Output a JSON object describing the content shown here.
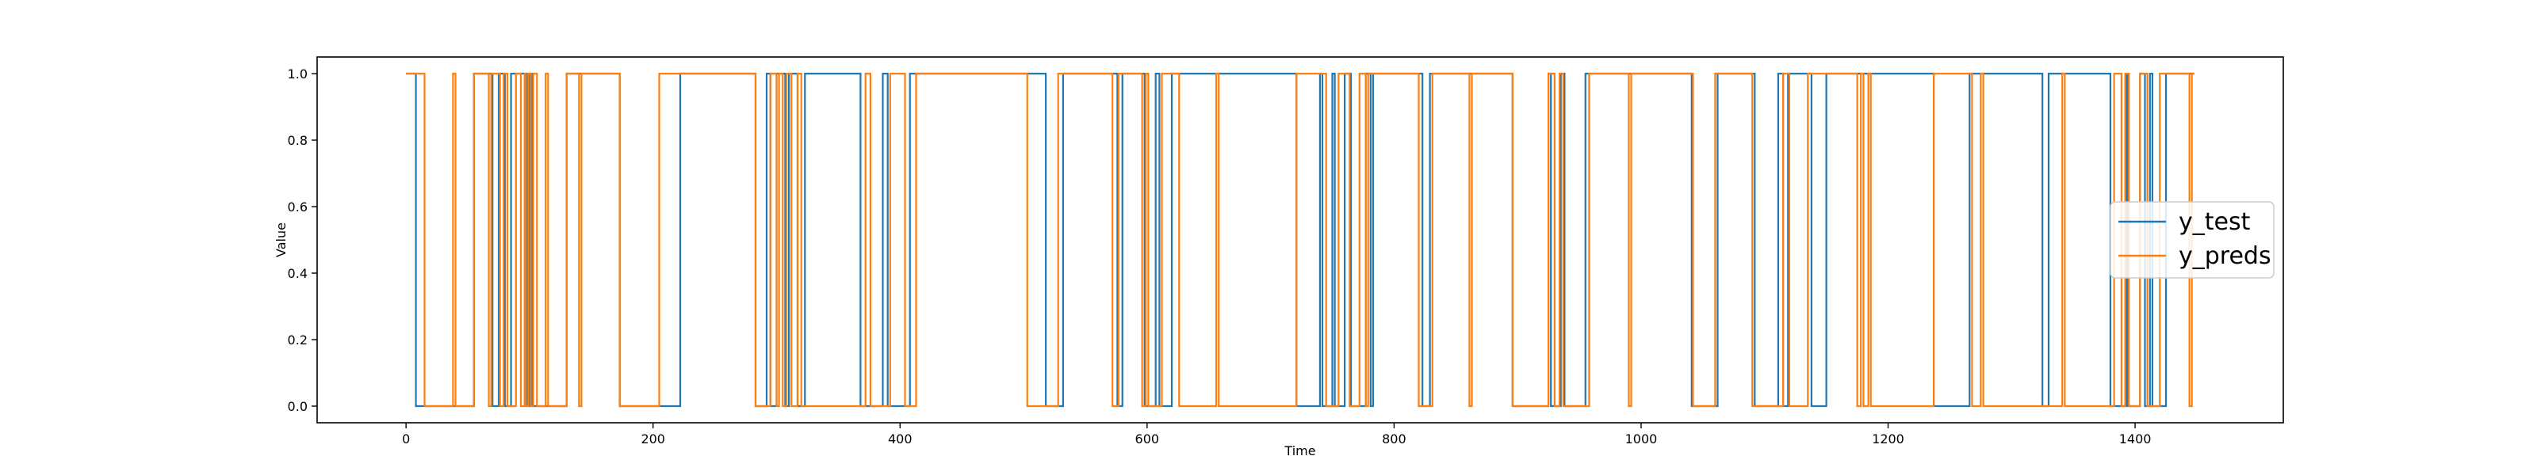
{
  "chart_data": {
    "type": "line",
    "title": "",
    "xlabel": "Time",
    "ylabel": "Value",
    "xlim": [
      -72,
      1520
    ],
    "ylim": [
      -0.05,
      1.05
    ],
    "x_ticks": [
      0,
      200,
      400,
      600,
      800,
      1000,
      1200,
      1400
    ],
    "y_ticks": [
      0.0,
      0.2,
      0.4,
      0.6,
      0.8,
      1.0
    ],
    "x_tick_labels": [
      "0",
      "200",
      "400",
      "600",
      "800",
      "1000",
      "1200",
      "1400"
    ],
    "y_tick_labels": [
      "0.0",
      "0.2",
      "0.4",
      "0.6",
      "0.8",
      "1.0"
    ],
    "grid": false,
    "legend_position": "center-right",
    "x_max": 1448,
    "series": [
      {
        "name": "y_test",
        "color": "#1f77b4",
        "start_value": 1,
        "transitions": [
          8,
          55,
          70,
          75,
          80,
          85,
          98,
          100,
          102,
          130,
          173,
          222,
          283,
          292,
          295,
          300,
          307,
          310,
          317,
          323,
          368,
          386,
          390,
          408,
          518,
          532,
          576,
          580,
          598,
          607,
          610,
          620,
          721,
          740,
          742,
          750,
          752,
          760,
          765,
          777,
          781,
          783,
          823,
          829,
          896,
          925,
          927,
          935,
          938,
          955,
          1041,
          1062,
          1092,
          1111,
          1115,
          1119,
          1138,
          1150,
          1237,
          1266,
          1325,
          1330,
          1380,
          1393,
          1394,
          1404,
          1408,
          1412,
          1414,
          1425
        ]
      },
      {
        "name": "y_preds",
        "color": "#ff7f0e",
        "start_value": 1,
        "transitions": [
          15,
          38,
          40,
          55,
          67,
          69,
          76,
          79,
          82,
          89,
          93,
          96,
          97,
          99,
          101,
          103,
          106,
          113,
          115,
          130,
          140,
          142,
          173,
          205,
          283,
          295,
          300,
          302,
          305,
          308,
          312,
          317,
          320,
          372,
          376,
          392,
          404,
          413,
          503,
          528,
          572,
          577,
          596,
          599,
          601,
          612,
          626,
          656,
          658,
          721,
          745,
          755,
          764,
          772,
          777,
          779,
          820,
          831,
          861,
          863,
          896,
          925,
          930,
          934,
          937,
          958,
          990,
          992,
          1042,
          1060,
          1090,
          1115,
          1120,
          1135,
          1175,
          1178,
          1180,
          1184,
          1186,
          1237,
          1268,
          1275,
          1277,
          1341,
          1343,
          1383,
          1389,
          1392,
          1395,
          1404,
          1410,
          1420,
          1444,
          1446
        ]
      }
    ]
  }
}
